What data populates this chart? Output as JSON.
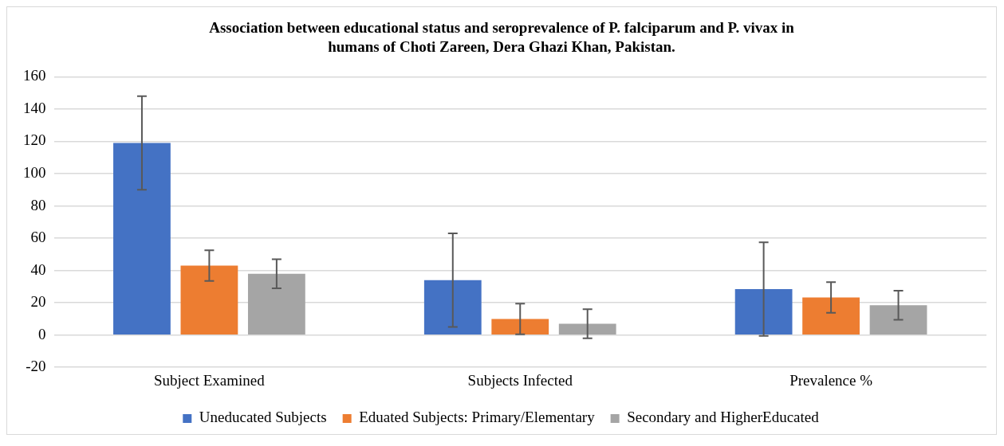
{
  "chart_data": {
    "type": "bar",
    "title": "Association between educational status and seroprevalence of P. falciparum and P. vivax in humans of Choti Zareen, Dera Ghazi Khan, Pakistan.",
    "categories": [
      "Subject Examined",
      "Subjects Infected",
      "Prevalence %"
    ],
    "series": [
      {
        "name": "Uneducated Subjects",
        "color": "#4472c4",
        "values": [
          119,
          34,
          28.5
        ],
        "errors": [
          29,
          29,
          29
        ]
      },
      {
        "name": "Eduated Subjects: Primary/Elementary",
        "color": "#ed7d31",
        "values": [
          43,
          10,
          23.3
        ],
        "errors": [
          9.5,
          9.5,
          9.5
        ]
      },
      {
        "name": "Secondary and HigherEducated",
        "color": "#a5a5a5",
        "values": [
          38,
          7,
          18.5
        ],
        "errors": [
          9,
          9,
          9
        ]
      }
    ],
    "ylim": [
      -20,
      160
    ],
    "yticks": [
      -20,
      0,
      20,
      40,
      60,
      80,
      100,
      120,
      140,
      160
    ],
    "grid": "y",
    "legend": "bottom"
  }
}
